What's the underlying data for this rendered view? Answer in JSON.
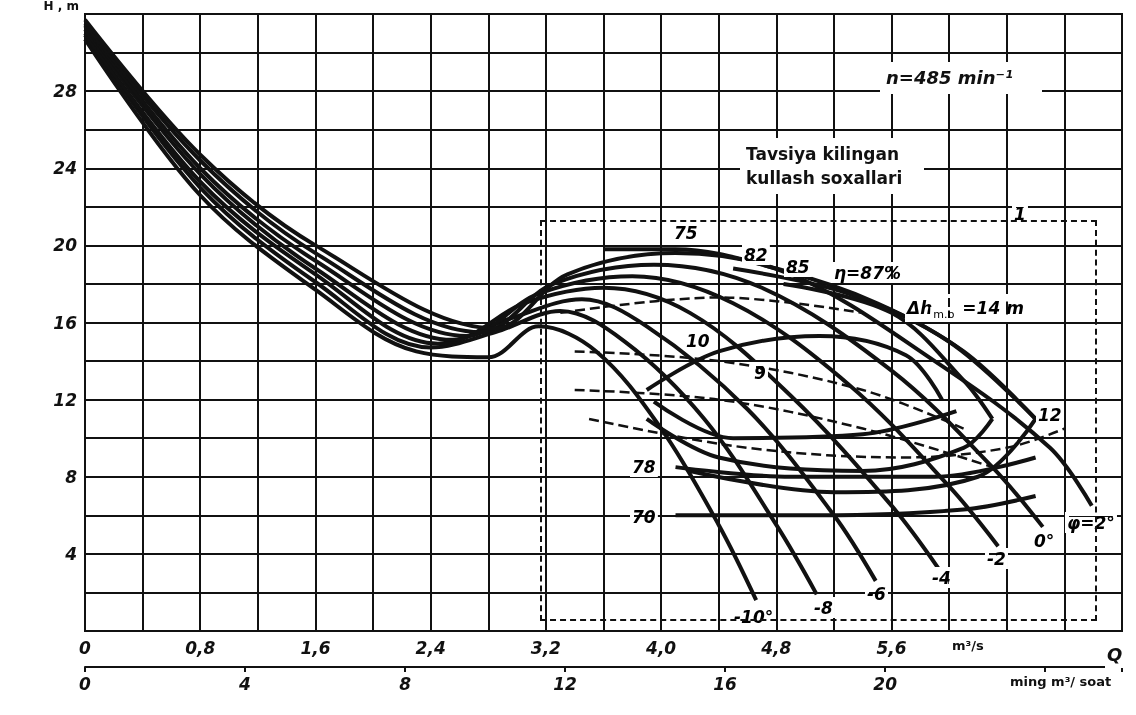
{
  "chart_data": {
    "type": "line",
    "ylabel": "H , m",
    "xlabel": "m³/s",
    "x2label": "ming m³/ soat",
    "xlim": [
      0,
      7.2
    ],
    "xticks": [
      0,
      {
        "value": 0.4,
        "label": null
      },
      {
        "value": 0.8,
        "label": "0,8"
      },
      {
        "value": 1.2,
        "label": null
      },
      {
        "value": 1.6,
        "label": "1,6"
      },
      {
        "value": 2.0,
        "label": null
      },
      {
        "value": 2.4,
        "label": "2,4"
      },
      {
        "value": 2.8,
        "label": null
      },
      {
        "value": 3.2,
        "label": "3,2"
      },
      {
        "value": 3.6,
        "label": null
      },
      {
        "value": 4.0,
        "label": "4,0"
      },
      {
        "value": 4.4,
        "label": null
      },
      {
        "value": 4.8,
        "label": "4,8"
      },
      {
        "value": 5.2,
        "label": null
      },
      {
        "value": 5.6,
        "label": "5,6"
      },
      {
        "value": 6.0,
        "label": null
      },
      {
        "value": 6.4,
        "label": null
      },
      {
        "value": 6.8,
        "label": null
      },
      {
        "value": 7.2,
        "label": null
      }
    ],
    "x2lim": [
      0,
      25.92
    ],
    "x2ticks": [
      0,
      4,
      8,
      12,
      16,
      20
    ],
    "ylim": [
      0,
      32
    ],
    "yticks": [
      {
        "value": 0,
        "label": null
      },
      {
        "value": 2,
        "label": null
      },
      4,
      {
        "value": 6,
        "label": null
      },
      8,
      {
        "value": 10,
        "label": null
      },
      12,
      {
        "value": 14,
        "label": null
      },
      16,
      {
        "value": 18,
        "label": null
      },
      20,
      {
        "value": 22,
        "label": null
      },
      24,
      {
        "value": 26,
        "label": null
      },
      28,
      {
        "value": 30,
        "label": null
      },
      {
        "value": 32,
        "label": null
      }
    ],
    "grid": true,
    "marker": "none",
    "series": [
      {
        "color": "#111111",
        "x": [
          0,
          0.8,
          1.6,
          2.3,
          2.8,
          3.15,
          3.55,
          4.0,
          4.4,
          4.66
        ],
        "values": [
          30.7,
          22.6,
          17.7,
          14.5,
          14.2,
          15.8,
          14.5,
          10.5,
          5.5,
          1.6
        ]
      },
      {
        "color": "#111111",
        "x": [
          0,
          0.8,
          1.6,
          2.4,
          2.85,
          3.3,
          3.75,
          4.3,
          4.8,
          5.08
        ],
        "values": [
          30.9,
          23.0,
          18.1,
          14.7,
          15.5,
          16.6,
          15.0,
          11.0,
          5.5,
          1.9
        ]
      },
      {
        "color": "#111111",
        "x": [
          0,
          0.8,
          1.6,
          2.45,
          2.95,
          3.45,
          3.9,
          4.6,
          5.2,
          5.49
        ],
        "values": [
          31.0,
          23.3,
          18.5,
          14.9,
          16.2,
          17.2,
          15.8,
          11.5,
          6.0,
          2.6
        ]
      },
      {
        "color": "#111111",
        "x": [
          0,
          0.8,
          1.6,
          2.55,
          3.05,
          3.6,
          4.2,
          4.9,
          5.6,
          5.93
        ],
        "values": [
          31.2,
          23.7,
          18.8,
          15.1,
          17.0,
          17.8,
          16.5,
          12.2,
          6.5,
          3.2
        ]
      },
      {
        "color": "#111111",
        "x": [
          0,
          0.8,
          1.6,
          2.65,
          3.15,
          3.8,
          4.5,
          5.3,
          6.0,
          6.34
        ],
        "values": [
          31.4,
          24.0,
          19.2,
          15.3,
          17.5,
          18.4,
          17.0,
          12.8,
          7.5,
          4.4
        ]
      },
      {
        "color": "#111111",
        "x": [
          0,
          0.8,
          1.6,
          2.75,
          3.25,
          3.95,
          4.7,
          5.6,
          6.3,
          6.65
        ],
        "values": [
          31.5,
          24.4,
          19.6,
          15.5,
          18.0,
          19.0,
          17.8,
          13.5,
          8.5,
          5.4
        ]
      },
      {
        "color": "#111111",
        "x": [
          0,
          0.8,
          1.6,
          2.85,
          3.35,
          4.1,
          4.9,
          5.9,
          6.7,
          6.99
        ],
        "values": [
          31.7,
          24.7,
          20.0,
          15.7,
          18.5,
          19.6,
          18.5,
          14.0,
          9.5,
          6.5
        ]
      },
      {
        "color": "#111111",
        "x": [
          3.6,
          4.1,
          4.8,
          5.5,
          6.1,
          6.6
        ],
        "values": [
          19.8,
          19.8,
          18.8,
          17.0,
          14.5,
          11.0
        ]
      },
      {
        "color": "#111111",
        "x": [
          4.5,
          5.3,
          6.0,
          6.6
        ],
        "values": [
          18.8,
          17.5,
          15.0,
          11.0
        ]
      },
      {
        "color": "#111111",
        "x": [
          4.2,
          5.2,
          6.2,
          6.6
        ],
        "values": [
          8.3,
          7.2,
          8.0,
          11.0
        ]
      },
      {
        "color": "#111111",
        "x": [
          4.85,
          5.6,
          6.1,
          6.3
        ],
        "values": [
          18.0,
          16.5,
          13.0,
          11.0
        ]
      },
      {
        "color": "#111111",
        "x": [
          3.9,
          4.4,
          5.4,
          6.1,
          6.3
        ],
        "values": [
          11.0,
          9.0,
          8.3,
          9.5,
          11.0
        ]
      },
      {
        "color": "#111111",
        "x": [
          3.9,
          4.4,
          5.1,
          5.7,
          5.95
        ],
        "values": [
          12.5,
          14.5,
          15.3,
          14.3,
          12.0
        ]
      },
      {
        "color": "#111111",
        "x": [
          3.95,
          4.5,
          5.4,
          6.05
        ],
        "values": [
          11.9,
          10.0,
          10.2,
          11.4
        ]
      },
      {
        "color": "#111111",
        "x": [
          4.1,
          4.9,
          5.9,
          6.6
        ],
        "values": [
          8.5,
          8.0,
          8.0,
          9.0
        ]
      },
      {
        "color": "#111111",
        "x": [
          4.1,
          5.1,
          6.1,
          6.6
        ],
        "values": [
          6.0,
          6.0,
          6.3,
          7.0
        ]
      },
      {
        "color": "#111111",
        "line_style": "dashed",
        "x": [
          3.3,
          4.4,
          5.4
        ],
        "values": [
          16.5,
          17.3,
          16.5
        ]
      },
      {
        "color": "#111111",
        "line_style": "dashed",
        "x": [
          3.4,
          4.4,
          5.4,
          6.1
        ],
        "values": [
          14.5,
          14.0,
          12.5,
          10.5
        ]
      },
      {
        "color": "#111111",
        "line_style": "dashed",
        "x": [
          3.4,
          4.4,
          5.4,
          6.3
        ],
        "values": [
          12.5,
          12.0,
          10.5,
          8.5
        ]
      },
      {
        "color": "#111111",
        "line_style": "dashed",
        "x": [
          3.5,
          4.6,
          5.7,
          6.4,
          6.8
        ],
        "values": [
          11.0,
          9.5,
          9.0,
          9.5,
          10.5
        ]
      }
    ],
    "annotations": [
      "n=485 min⁻¹",
      "Tavsiya kilingan kullash soxallari",
      "Q",
      "75",
      "82",
      "85",
      "η=87%",
      "Δh$_{m.b}$ =14 m",
      "10",
      "9",
      "12",
      "78",
      "70",
      "1",
      "-10°",
      "-8",
      "-6",
      "-4",
      "-2",
      "0°",
      "φ=2°"
    ]
  }
}
